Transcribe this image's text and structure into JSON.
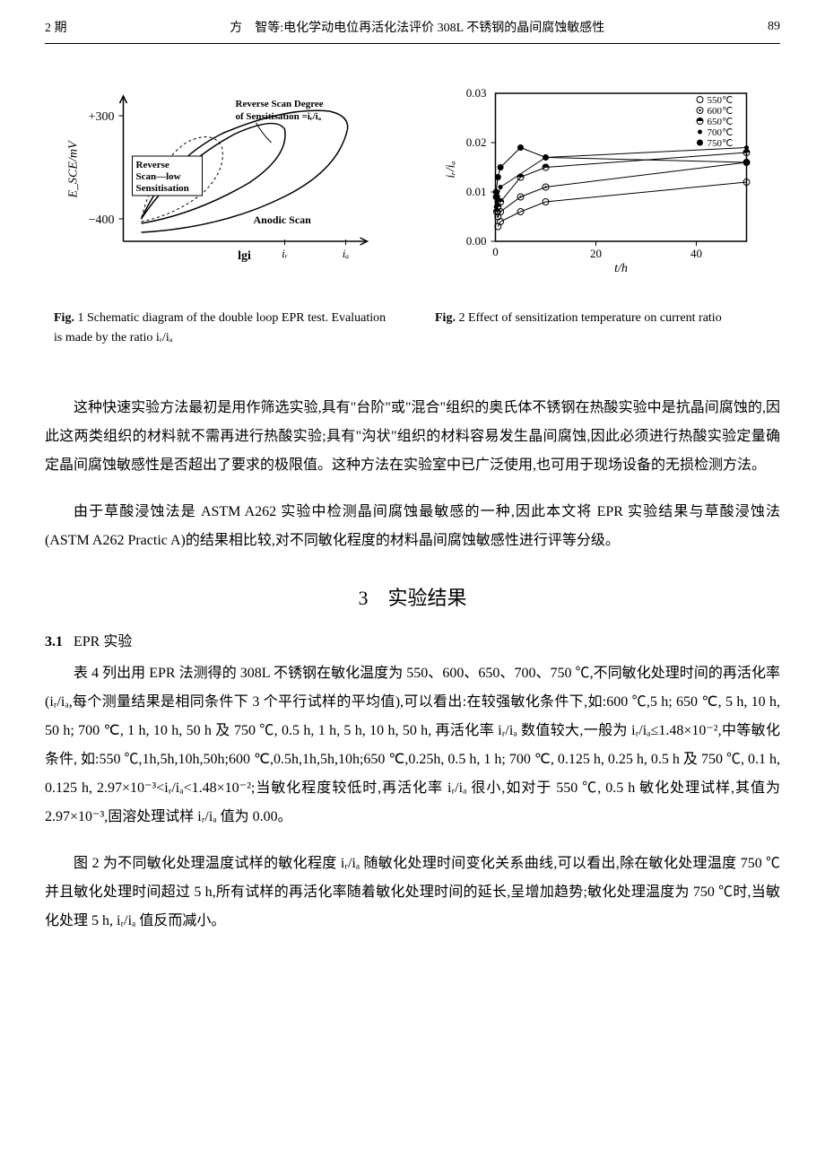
{
  "header": {
    "issue": "2 期",
    "running_title": "方　智等:电化学动电位再活化法评价 308L 不锈钢的晶间腐蚀敏感性",
    "page_number": "89"
  },
  "fig1": {
    "caption_label": "Fig.",
    "caption_num": "1",
    "caption_text": "Schematic diagram of the double loop EPR test. Evaluation is made by the ratio iᵣ/iₐ",
    "ylabel": "E_SCE/mV",
    "xlabel": "lgi",
    "y_top": "+300",
    "y_bottom": "−400",
    "annot_reverse_degree_1": "Reverse Scan Degree",
    "annot_reverse_degree_2": "of Sensitisation =iᵣ/iₐ",
    "annot_reverse_low_1": "Reverse",
    "annot_reverse_low_2": "Scan—low",
    "annot_reverse_low_3": "Sensitisation",
    "annot_anodic": "Anodic Scan",
    "ir_label": "iᵣ",
    "ia_label": "iₐ",
    "axis_color": "#000000",
    "curve_color": "#000000"
  },
  "fig2": {
    "caption_label": "Fig.",
    "caption_num": "2",
    "caption_text": "Effect of sensitization temperature on current ratio",
    "xlabel": "t/h",
    "ylabel": "iᵣ/iₐ",
    "x_ticks": [
      "0",
      "20",
      "40"
    ],
    "y_ticks": [
      "0.00",
      "0.01",
      "0.02",
      "0.03"
    ],
    "xlim": [
      0,
      50
    ],
    "ylim": [
      0,
      0.03
    ],
    "legend": [
      {
        "label": "550℃",
        "marker": "circle-open",
        "color": "#000000"
      },
      {
        "label": "600℃",
        "marker": "circle-dot",
        "color": "#000000"
      },
      {
        "label": "650℃",
        "marker": "circle-half",
        "color": "#000000"
      },
      {
        "label": "700℃",
        "marker": "circle-solid-small",
        "color": "#000000"
      },
      {
        "label": "750℃",
        "marker": "circle-solid",
        "color": "#000000"
      }
    ],
    "series": {
      "550": [
        [
          0.5,
          0.003
        ],
        [
          1,
          0.004
        ],
        [
          5,
          0.006
        ],
        [
          10,
          0.008
        ],
        [
          50,
          0.012
        ]
      ],
      "600": [
        [
          0.5,
          0.005
        ],
        [
          1,
          0.006
        ],
        [
          5,
          0.009
        ],
        [
          10,
          0.011
        ],
        [
          50,
          0.016
        ]
      ],
      "650": [
        [
          0.25,
          0.006
        ],
        [
          0.5,
          0.007
        ],
        [
          1,
          0.008
        ],
        [
          5,
          0.013
        ],
        [
          10,
          0.015
        ],
        [
          50,
          0.018
        ]
      ],
      "700": [
        [
          0.125,
          0.007
        ],
        [
          0.25,
          0.008
        ],
        [
          0.5,
          0.009
        ],
        [
          1,
          0.011
        ],
        [
          10,
          0.017
        ],
        [
          50,
          0.019
        ]
      ],
      "750": [
        [
          0.1,
          0.009
        ],
        [
          0.125,
          0.01
        ],
        [
          0.5,
          0.013
        ],
        [
          1,
          0.015
        ],
        [
          5,
          0.019
        ],
        [
          10,
          0.017
        ],
        [
          50,
          0.016
        ]
      ]
    },
    "axis_color": "#000000",
    "line_color": "#000000"
  },
  "paragraphs": {
    "p1": "这种快速实验方法最初是用作筛选实验,具有\"台阶\"或\"混合\"组织的奥氏体不锈钢在热酸实验中是抗晶间腐蚀的,因此这两类组织的材料就不需再进行热酸实验;具有\"沟状\"组织的材料容易发生晶间腐蚀,因此必须进行热酸实验定量确定晶间腐蚀敏感性是否超出了要求的极限值。这种方法在实验室中已广泛使用,也可用于现场设备的无损检测方法。",
    "p2": "由于草酸浸蚀法是 ASTM A262 实验中检测晶间腐蚀最敏感的一种,因此本文将 EPR 实验结果与草酸浸蚀法(ASTM A262 Practic A)的结果相比较,对不同敏化程度的材料晶间腐蚀敏感性进行评等分级。",
    "p3": "表 4 列出用 EPR 法测得的 308L 不锈钢在敏化温度为 550、600、650、700、750 ℃,不同敏化处理时间的再活化率(iᵣ/iₐ,每个测量结果是相同条件下 3 个平行试样的平均值),可以看出:在较强敏化条件下,如:600 ℃,5 h; 650 ℃, 5 h, 10 h, 50 h; 700 ℃, 1 h, 10 h, 50 h 及 750 ℃, 0.5 h, 1 h, 5 h, 10 h, 50 h, 再活化率 iᵣ/iₐ 数值较大,一般为 iᵣ/iₐ≤1.48×10⁻²,中等敏化条件, 如:550 ℃,1h,5h,10h,50h;600 ℃,0.5h,1h,5h,10h;650 ℃,0.25h, 0.5 h, 1 h; 700 ℃, 0.125 h, 0.25 h, 0.5 h 及 750 ℃, 0.1 h, 0.125 h, 2.97×10⁻³<iᵣ/iₐ<1.48×10⁻²;当敏化程度较低时,再活化率 iᵣ/iₐ 很小,如对于 550 ℃, 0.5 h 敏化处理试样,其值为 2.97×10⁻³,固溶处理试样 iᵣ/iₐ 值为 0.00。",
    "p4": "图 2 为不同敏化处理温度试样的敏化程度 iᵣ/iₐ 随敏化处理时间变化关系曲线,可以看出,除在敏化处理温度 750 ℃并且敏化处理时间超过 5 h,所有试样的再活化率随着敏化处理时间的延长,呈增加趋势;敏化处理温度为 750 ℃时,当敏化处理 5 h, iᵣ/iₐ 值反而减小。"
  },
  "section3": {
    "number": "3",
    "title": "实验结果"
  },
  "section31": {
    "number": "3.1",
    "title": "EPR 实验"
  }
}
